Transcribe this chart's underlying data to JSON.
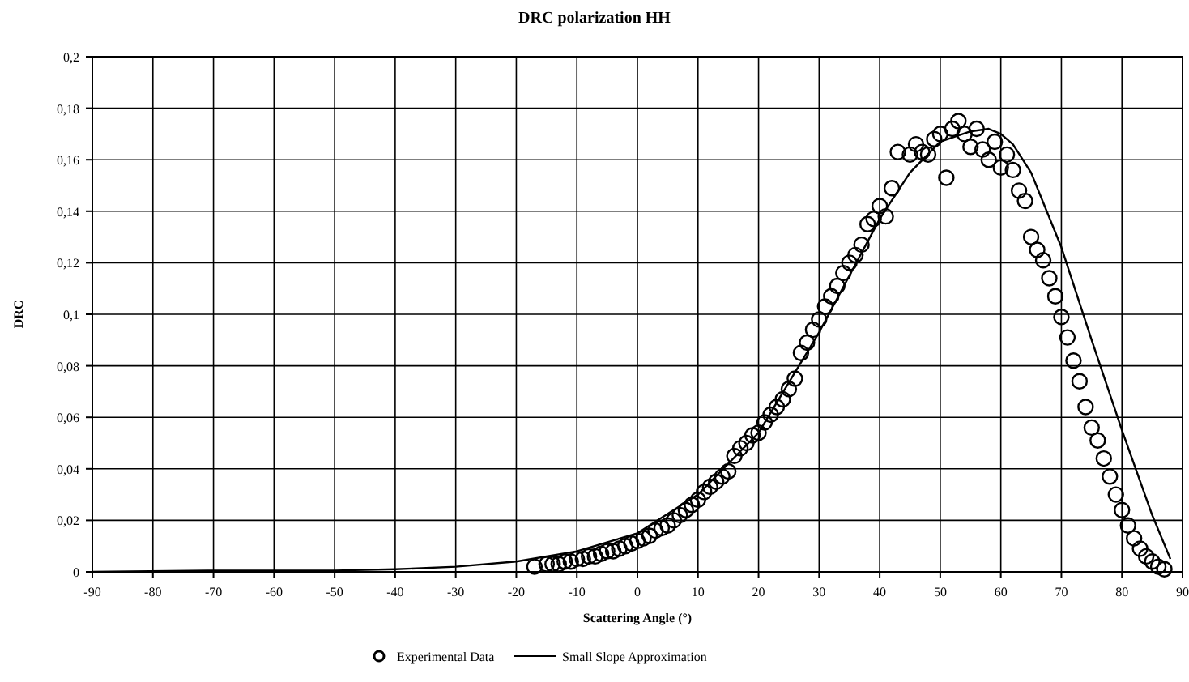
{
  "chart_data": {
    "type": "scatter",
    "title": "DRC polarization HH",
    "xlabel": "Scattering Angle (°)",
    "ylabel": "DRC",
    "xlim": [
      -90,
      90
    ],
    "xticks": [
      -90,
      -80,
      -70,
      -60,
      -50,
      -40,
      -30,
      -20,
      -10,
      0,
      10,
      20,
      30,
      40,
      50,
      60,
      70,
      80,
      90
    ],
    "ylim": [
      0,
      0.2
    ],
    "yticks": [
      0,
      {
        "value": 0.02,
        "label": "0,02"
      },
      {
        "value": 0.04,
        "label": "0,04"
      },
      {
        "value": 0.06,
        "label": "0,06"
      },
      {
        "value": 0.08,
        "label": "0,08"
      },
      {
        "value": 0.1,
        "label": "0,1"
      },
      {
        "value": 0.12,
        "label": "0,12"
      },
      {
        "value": 0.14,
        "label": "0,14"
      },
      {
        "value": 0.16,
        "label": "0,16"
      },
      {
        "value": 0.18,
        "label": "0,18"
      },
      {
        "value": 0.2,
        "label": "0,2"
      }
    ],
    "grid": true,
    "legend": "bottom",
    "series": [
      {
        "name": "Experimental Data",
        "marker": "circle",
        "color": "#000000",
        "x": [
          -17,
          -15,
          -14,
          -13,
          -12,
          -11,
          -10,
          -9,
          -8,
          -7,
          -6,
          -5,
          -4,
          -3,
          -2,
          -1,
          0,
          1,
          2,
          3,
          4,
          5,
          6,
          7,
          8,
          9,
          10,
          11,
          12,
          13,
          14,
          15,
          16,
          17,
          18,
          19,
          20,
          21,
          22,
          23,
          24,
          25,
          26,
          27,
          28,
          29,
          30,
          31,
          32,
          33,
          34,
          35,
          36,
          37,
          38,
          39,
          40,
          41,
          42,
          43,
          45,
          46,
          47,
          48,
          49,
          50,
          51,
          52,
          53,
          54,
          55,
          56,
          57,
          58,
          59,
          60,
          61,
          62,
          63,
          64,
          65,
          66,
          67,
          68,
          69,
          70,
          71,
          72,
          73,
          74,
          75,
          76,
          77,
          78,
          79,
          80,
          81,
          82,
          83,
          84,
          85,
          86,
          87
        ],
        "values": [
          0.002,
          0.003,
          0.003,
          0.003,
          0.004,
          0.004,
          0.005,
          0.005,
          0.006,
          0.006,
          0.007,
          0.008,
          0.008,
          0.009,
          0.01,
          0.011,
          0.012,
          0.013,
          0.014,
          0.016,
          0.017,
          0.018,
          0.02,
          0.022,
          0.024,
          0.026,
          0.028,
          0.031,
          0.033,
          0.035,
          0.037,
          0.039,
          0.045,
          0.048,
          0.05,
          0.053,
          0.054,
          0.058,
          0.061,
          0.064,
          0.067,
          0.071,
          0.075,
          0.085,
          0.089,
          0.094,
          0.098,
          0.103,
          0.107,
          0.111,
          0.116,
          0.12,
          0.123,
          0.127,
          0.135,
          0.137,
          0.142,
          0.138,
          0.149,
          0.163,
          0.162,
          0.166,
          0.163,
          0.162,
          0.168,
          0.17,
          0.153,
          0.172,
          0.175,
          0.17,
          0.165,
          0.172,
          0.164,
          0.16,
          0.167,
          0.157,
          0.162,
          0.156,
          0.148,
          0.144,
          0.13,
          0.125,
          0.121,
          0.114,
          0.107,
          0.099,
          0.091,
          0.082,
          0.074,
          0.064,
          0.056,
          0.051,
          0.044,
          0.037,
          0.03,
          0.024,
          0.018,
          0.013,
          0.009,
          0.006,
          0.004,
          0.002,
          0.001
        ]
      },
      {
        "name": "Small Slope Approximation",
        "type": "line",
        "marker": "none",
        "line_style": "solid",
        "color": "#000000",
        "x": [
          -90,
          -70,
          -50,
          -40,
          -30,
          -20,
          -10,
          0,
          10,
          20,
          30,
          40,
          45,
          50,
          55,
          58,
          60,
          62,
          65,
          70,
          75,
          80,
          85,
          88
        ],
        "values": [
          0,
          0.0005,
          0.0005,
          0.001,
          0.002,
          0.004,
          0.008,
          0.015,
          0.03,
          0.054,
          0.093,
          0.137,
          0.155,
          0.167,
          0.171,
          0.172,
          0.17,
          0.166,
          0.155,
          0.126,
          0.09,
          0.055,
          0.022,
          0.005
        ]
      }
    ]
  }
}
